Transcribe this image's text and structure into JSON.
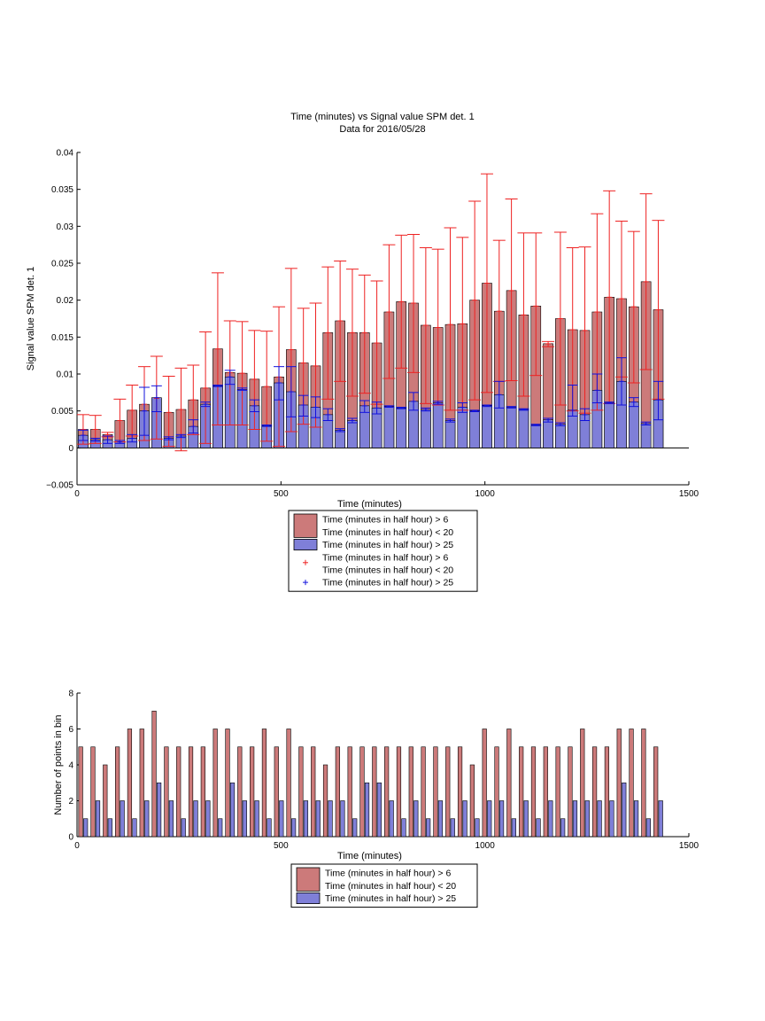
{
  "figure": {
    "title_line1": "Time (minutes) vs Signal value SPM det. 1",
    "title_line2": "Data for 2016/05/28"
  },
  "colors": {
    "red_fill": "#cc7a7a",
    "blue_fill": "#7f7fd8",
    "red_err": "#ee2222",
    "blue_err": "#1111dd",
    "edge": "#000000"
  },
  "chart_data": [
    {
      "type": "bar",
      "title": "Time (minutes) vs Signal value SPM det. 1",
      "subtitle": "Data for 2016/05/28",
      "xlabel": "Time (minutes)",
      "ylabel": "Signal value SPM det. 1",
      "xlim": [
        0,
        1500
      ],
      "ylim": [
        -0.005,
        0.04
      ],
      "xticks": [
        "0",
        "500",
        "1000",
        "1500"
      ],
      "yticks": [
        "−0.005",
        "0",
        "0.005",
        "0.01",
        "0.015",
        "0.02",
        "0.025",
        "0.03",
        "0.035",
        "0.04"
      ],
      "legend_position": "below",
      "legend": [
        {
          "label_lines": [
            "Time (minutes in half hour) > 6",
            "Time (minutes in half hour) < 20"
          ],
          "kind": "bar",
          "color": "red"
        },
        {
          "label_lines": [
            "Time (minutes in half hour) > 25"
          ],
          "kind": "bar",
          "color": "blue"
        },
        {
          "label_lines": [
            "Time (minutes in half hour) > 6",
            "Time (minutes in half hour) < 20"
          ],
          "kind": "marker",
          "color": "red"
        },
        {
          "label_lines": [
            "Time (minutes in half hour) > 25"
          ],
          "kind": "marker",
          "color": "blue"
        }
      ],
      "x": [
        15,
        45,
        75,
        105,
        135,
        165,
        195,
        225,
        255,
        285,
        315,
        345,
        375,
        405,
        435,
        465,
        495,
        525,
        555,
        585,
        615,
        645,
        675,
        705,
        735,
        765,
        795,
        825,
        855,
        885,
        915,
        945,
        975,
        1005,
        1035,
        1065,
        1095,
        1125,
        1155,
        1185,
        1215,
        1245,
        1275,
        1305,
        1335,
        1365,
        1395,
        1425
      ],
      "series": [
        {
          "name": "Time (minutes in half hour) > 6 / Time (minutes in half hour) < 20",
          "values": [
            0.0025,
            0.0025,
            0.0018,
            0.0037,
            0.0051,
            0.0059,
            0.0067,
            0.0048,
            0.0052,
            0.0065,
            0.0081,
            0.0134,
            0.0102,
            0.0101,
            0.0093,
            0.0083,
            0.0096,
            0.0133,
            0.0115,
            0.0111,
            0.0156,
            0.0172,
            0.0156,
            0.0156,
            0.0142,
            0.0184,
            0.0198,
            0.0196,
            0.0166,
            0.0163,
            0.0167,
            0.0168,
            0.02,
            0.0223,
            0.0185,
            0.0213,
            0.018,
            0.0192,
            0.0141,
            0.0175,
            0.016,
            0.0159,
            0.0184,
            0.0204,
            0.0202,
            0.0191,
            0.0225,
            0.0187
          ],
          "err_low": [
            0.0005,
            0.0006,
            0.0015,
            0.0008,
            0.0016,
            0.001,
            0.0012,
            0.0002,
            -0.0004,
            0.0018,
            0.0006,
            0.0031,
            0.0031,
            0.0031,
            0.0025,
            0.0009,
            0.0002,
            0.0022,
            0.0032,
            0.0028,
            0.0066,
            0.009,
            0.007,
            0.0074,
            0.0059,
            0.0094,
            0.0108,
            0.0102,
            0.006,
            0.0058,
            0.0051,
            0.0051,
            0.0065,
            0.0075,
            0.009,
            0.0091,
            0.007,
            0.0098,
            0.0137,
            0.0058,
            0.005,
            0.0047,
            0.0051,
            0.006,
            0.0096,
            0.0088,
            0.0106,
            0.0066
          ],
          "err_high": [
            0.0045,
            0.0044,
            0.0021,
            0.0066,
            0.0085,
            0.011,
            0.0124,
            0.0097,
            0.0108,
            0.0112,
            0.0157,
            0.0237,
            0.0172,
            0.0171,
            0.0159,
            0.0158,
            0.0191,
            0.0243,
            0.0189,
            0.0196,
            0.0245,
            0.0253,
            0.0242,
            0.0234,
            0.0226,
            0.0275,
            0.0288,
            0.0289,
            0.0271,
            0.0269,
            0.0298,
            0.0285,
            0.0334,
            0.0371,
            0.0281,
            0.0337,
            0.0291,
            0.0291,
            0.0144,
            0.0292,
            0.0271,
            0.0272,
            0.0317,
            0.0348,
            0.0307,
            0.0293,
            0.0344,
            0.0308
          ]
        },
        {
          "name": "Time (minutes in half hour) > 25",
          "values": [
            0.0017,
            0.0011,
            0.0011,
            0.0008,
            0.0013,
            0.005,
            0.0068,
            0.0013,
            0.0016,
            0.0029,
            0.0059,
            0.0084,
            0.0096,
            0.0079,
            0.0057,
            0.003,
            0.0088,
            0.0076,
            0.0058,
            0.0055,
            0.0045,
            0.0024,
            0.0037,
            0.0057,
            0.0054,
            0.0056,
            0.0054,
            0.0063,
            0.0052,
            0.0061,
            0.0037,
            0.0055,
            0.005,
            0.0057,
            0.0072,
            0.0055,
            0.0052,
            0.0031,
            0.0038,
            0.0032,
            0.0051,
            0.0045,
            0.0078,
            0.0061,
            0.009,
            0.0062,
            0.0033,
            0.0065
          ],
          "err_low": [
            0.001,
            0.0009,
            0.0006,
            0.0006,
            0.0008,
            0.0017,
            0.0049,
            0.0011,
            0.0014,
            0.002,
            0.0056,
            0.0083,
            0.0086,
            0.0078,
            0.0049,
            0.0029,
            0.0065,
            0.0042,
            0.0043,
            0.0041,
            0.0037,
            0.0022,
            0.0034,
            0.0048,
            0.0046,
            0.0055,
            0.0053,
            0.0051,
            0.005,
            0.0059,
            0.0035,
            0.0048,
            0.0049,
            0.0056,
            0.0054,
            0.0054,
            0.0051,
            0.003,
            0.0035,
            0.003,
            0.0043,
            0.0037,
            0.0061,
            0.006,
            0.0058,
            0.0056,
            0.0031,
            0.0038
          ],
          "err_high": [
            0.0024,
            0.0013,
            0.0016,
            0.001,
            0.0018,
            0.0082,
            0.0084,
            0.0015,
            0.0018,
            0.0038,
            0.0062,
            0.0085,
            0.0105,
            0.0081,
            0.0065,
            0.0031,
            0.011,
            0.011,
            0.0071,
            0.0069,
            0.0053,
            0.0026,
            0.004,
            0.0064,
            0.0062,
            0.0057,
            0.0055,
            0.0075,
            0.0054,
            0.0063,
            0.0039,
            0.0061,
            0.0051,
            0.0058,
            0.009,
            0.0056,
            0.0053,
            0.0032,
            0.004,
            0.0034,
            0.0085,
            0.0053,
            0.01,
            0.0062,
            0.0122,
            0.0068,
            0.0035,
            0.009
          ]
        }
      ]
    },
    {
      "type": "bar",
      "xlabel": "Time (minutes)",
      "ylabel": "Number of points in bin",
      "xlim": [
        0,
        1500
      ],
      "ylim": [
        0,
        8
      ],
      "xticks": [
        "0",
        "500",
        "1000",
        "1500"
      ],
      "yticks": [
        "0",
        "2",
        "4",
        "6",
        "8"
      ],
      "legend_position": "below",
      "legend": [
        {
          "label_lines": [
            "Time (minutes in half hour) > 6",
            "Time (minutes in half hour) < 20"
          ],
          "kind": "bar",
          "color": "red"
        },
        {
          "label_lines": [
            "Time (minutes in half hour) > 25"
          ],
          "kind": "bar",
          "color": "blue"
        }
      ],
      "x": [
        15,
        45,
        75,
        105,
        135,
        165,
        195,
        225,
        255,
        285,
        315,
        345,
        375,
        405,
        435,
        465,
        495,
        525,
        555,
        585,
        615,
        645,
        675,
        705,
        735,
        765,
        795,
        825,
        855,
        885,
        915,
        945,
        975,
        1005,
        1035,
        1065,
        1095,
        1125,
        1155,
        1185,
        1215,
        1245,
        1275,
        1305,
        1335,
        1365,
        1395,
        1425
      ],
      "series": [
        {
          "name": "Time (minutes in half hour) > 6 / Time (minutes in half hour) < 20",
          "values": [
            5,
            5,
            4,
            5,
            6,
            6,
            7,
            5,
            5,
            5,
            5,
            6,
            6,
            5,
            5,
            6,
            5,
            6,
            5,
            5,
            4,
            5,
            5,
            5,
            5,
            5,
            5,
            5,
            5,
            5,
            5,
            5,
            4,
            6,
            5,
            6,
            5,
            5,
            5,
            5,
            5,
            6,
            5,
            5,
            6,
            6,
            6,
            5
          ]
        },
        {
          "name": "Time (minutes in half hour) > 25",
          "values": [
            1,
            2,
            1,
            2,
            1,
            2,
            3,
            2,
            1,
            2,
            2,
            1,
            3,
            2,
            2,
            1,
            2,
            1,
            2,
            2,
            2,
            2,
            1,
            3,
            3,
            2,
            1,
            2,
            1,
            2,
            1,
            2,
            1,
            2,
            2,
            1,
            2,
            1,
            2,
            1,
            2,
            2,
            2,
            2,
            3,
            2,
            1,
            2
          ]
        }
      ]
    }
  ]
}
